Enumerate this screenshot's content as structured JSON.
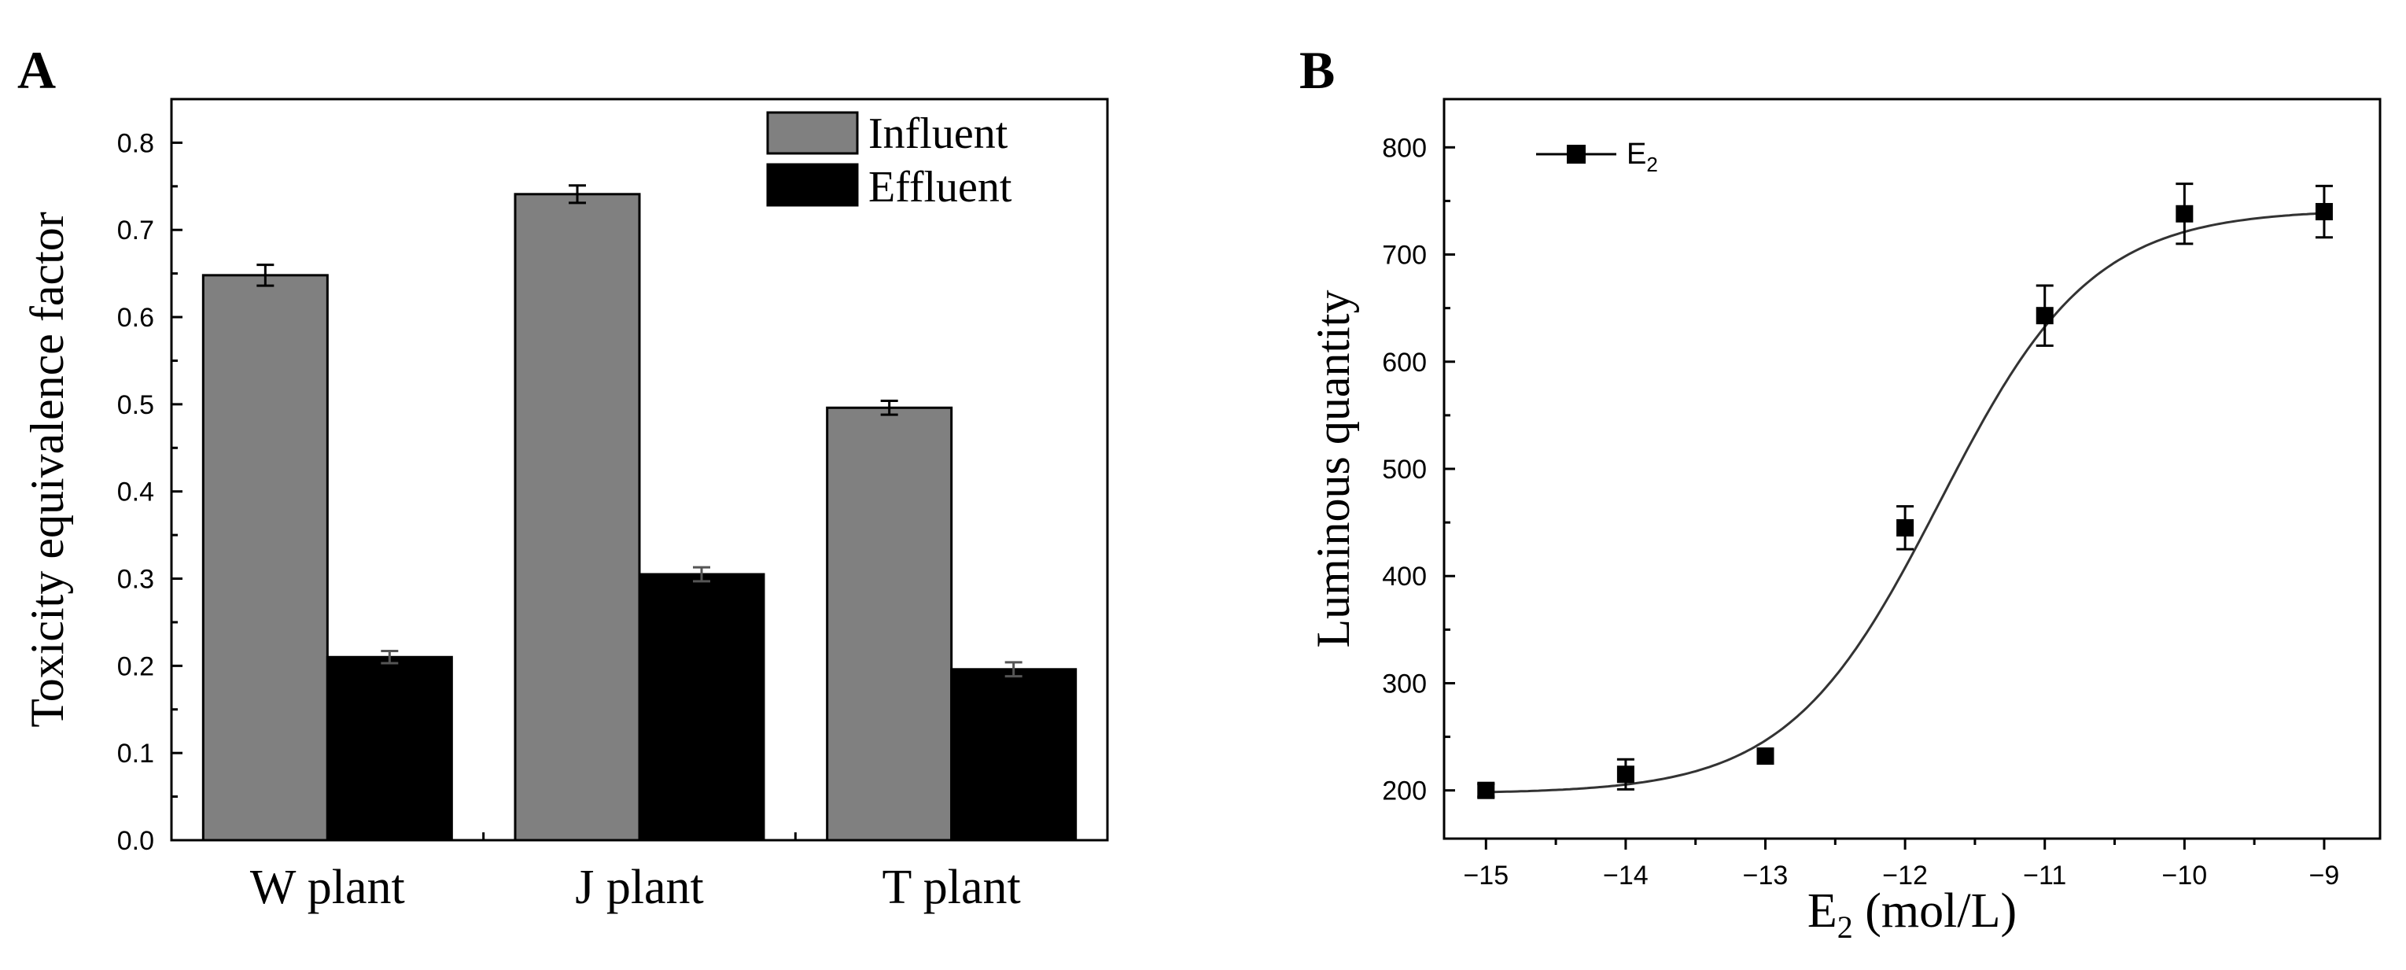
{
  "chart_data": [
    {
      "panel_label": "A",
      "type": "bar",
      "categories": [
        "W plant",
        "J plant",
        "T plant"
      ],
      "series": [
        {
          "name": "Influent",
          "color": "#808080",
          "values": [
            0.648,
            0.741,
            0.496
          ],
          "errors": [
            0.012,
            0.01,
            0.008
          ]
        },
        {
          "name": "Effluent",
          "color": "#000000",
          "values": [
            0.21,
            0.305,
            0.196
          ],
          "errors": [
            0.007,
            0.008,
            0.008
          ]
        }
      ],
      "title": "",
      "xlabel": "",
      "ylabel": "Toxicity equivalence factor",
      "ylim": [
        0,
        0.85
      ],
      "yticks": [
        "0.0",
        "0.1",
        "0.2",
        "0.3",
        "0.4",
        "0.5",
        "0.6",
        "0.7",
        "0.8"
      ],
      "legend_position": "top-right",
      "grid": false
    },
    {
      "panel_label": "B",
      "type": "scatter",
      "legend_label": "E",
      "legend_subscript": "2",
      "x": [
        -15,
        -14,
        -13,
        -12,
        -11,
        -10,
        -9
      ],
      "y": [
        200,
        215,
        232,
        445,
        643,
        738,
        740
      ],
      "y_errors": [
        6,
        14,
        6,
        20,
        28,
        28,
        24
      ],
      "fit": {
        "type": "sigmoid",
        "bottom": 197,
        "top": 742,
        "x50": -11.75,
        "hill": 0.8
      },
      "xlabel_prefix": "E",
      "xlabel_subscript": "2",
      "xlabel_suffix": " (mol/L)",
      "ylabel": "Luminous quantity",
      "xlim": [
        -15.3,
        -8.6
      ],
      "ylim": [
        155,
        845
      ],
      "xticks": [
        -15,
        -14,
        -13,
        -12,
        -11,
        -10,
        -9
      ],
      "xtick_labels": [
        "−15",
        "−14",
        "−13",
        "−12",
        "−11",
        "−10",
        "−9"
      ],
      "yticks": [
        200,
        300,
        400,
        500,
        600,
        700,
        800
      ],
      "ytick_labels": [
        "200",
        "300",
        "400",
        "500",
        "600",
        "700",
        "800"
      ],
      "legend_position": "top-left",
      "grid": false
    }
  ]
}
